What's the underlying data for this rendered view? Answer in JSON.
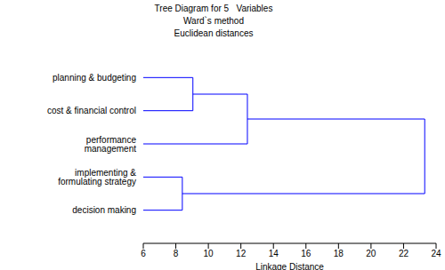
{
  "chart_data": {
    "type": "dendrogram",
    "title": [
      "Tree Diagram for 5   Variables",
      "Ward`s method",
      "Euclidean distances"
    ],
    "x_label": "Linkage Distance",
    "leaves": [
      "planning & budgeting",
      "cost & financial control",
      "performance management",
      "implementing & formulating strategy",
      "decision making"
    ],
    "merges": [
      {
        "join": [
          0,
          1
        ],
        "distance": 9.05
      },
      {
        "join": [
          5,
          2
        ],
        "distance": 12.4
      },
      {
        "join": [
          3,
          4
        ],
        "distance": 8.4
      },
      {
        "join": [
          6,
          7
        ],
        "distance": 23.3
      }
    ],
    "xlim": [
      6,
      24
    ],
    "xticks": [
      6,
      8,
      10,
      12,
      14,
      16,
      18,
      20,
      22,
      24
    ],
    "color": "#0000ff"
  }
}
